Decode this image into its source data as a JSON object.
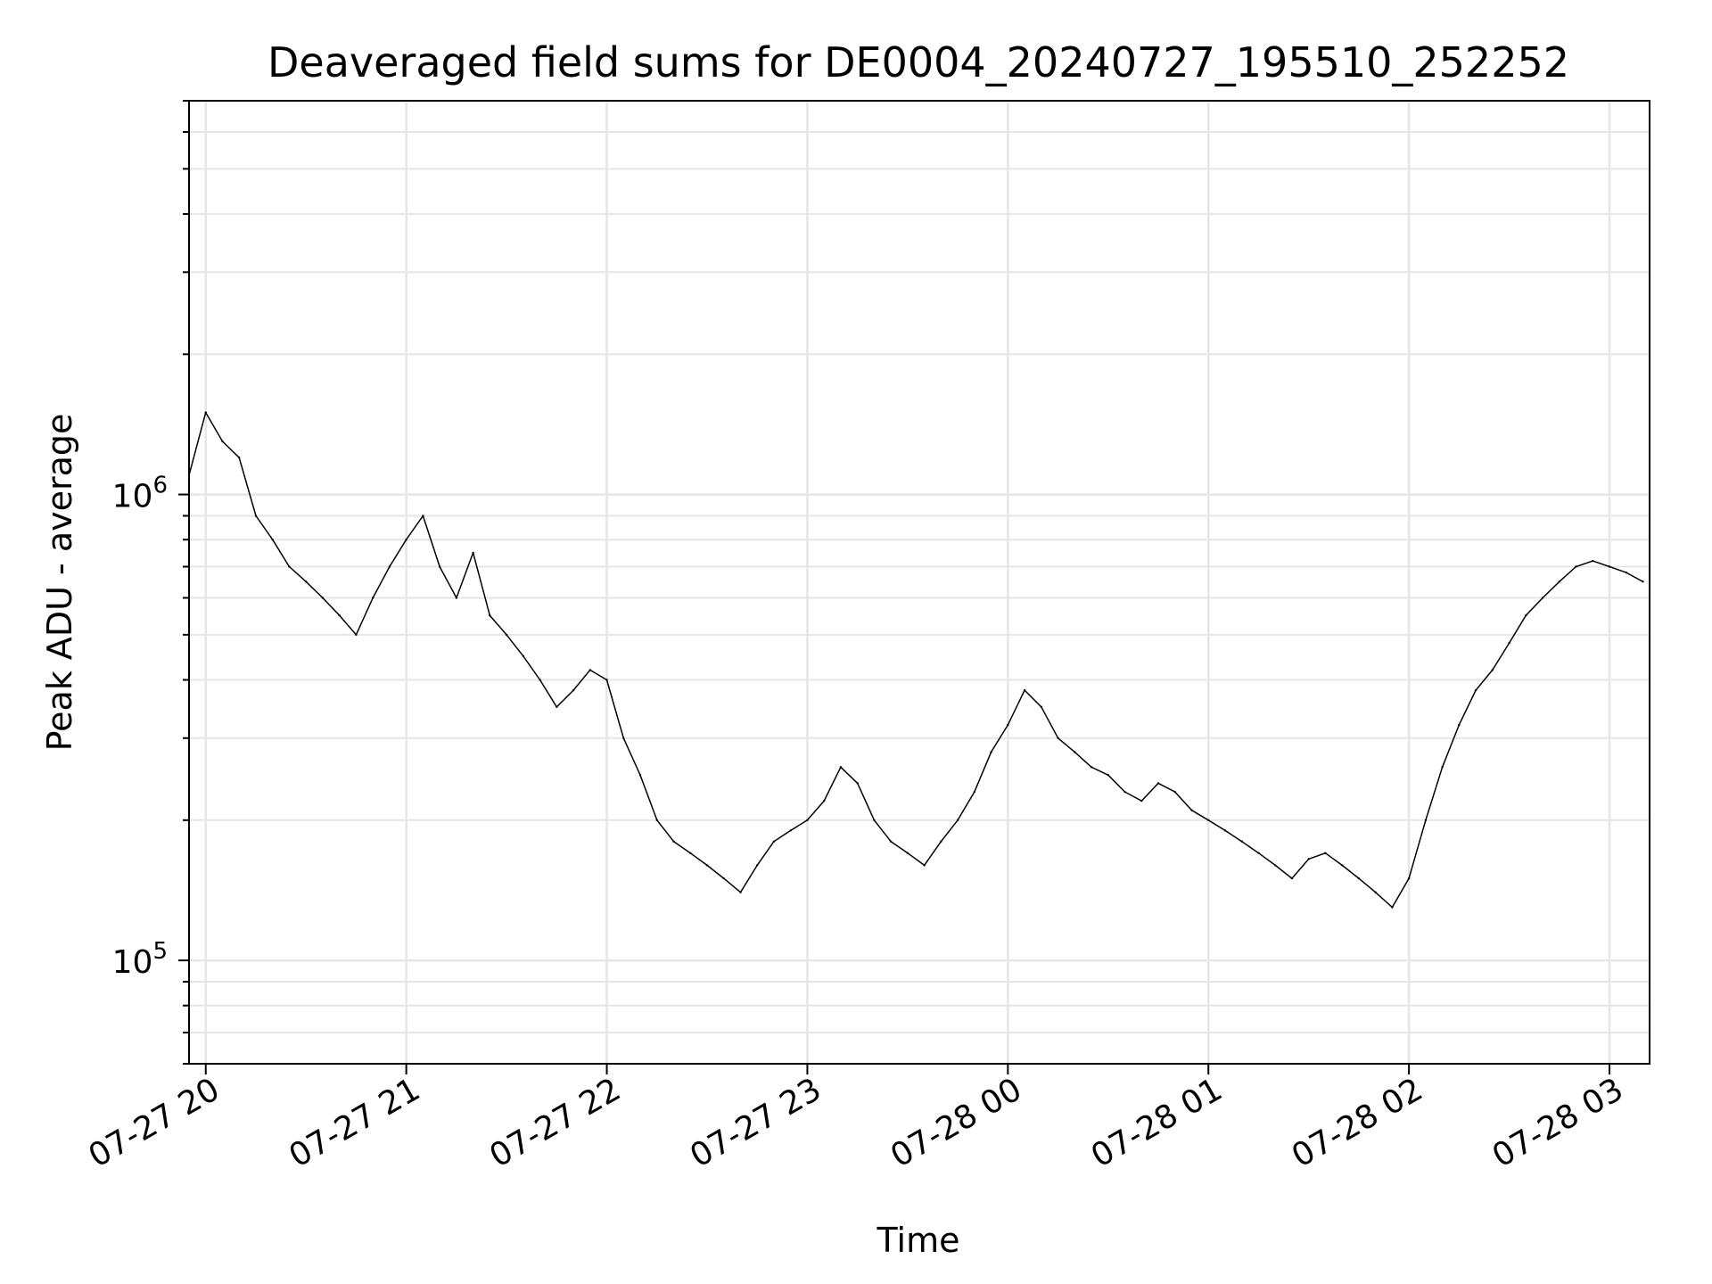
{
  "chart_data": {
    "type": "line",
    "title": "Deaveraged field sums for DE0004_20240727_195510_252252",
    "xlabel": "Time",
    "ylabel": "Peak ADU - average",
    "yscale": "log",
    "xlim": [
      "2024-07-27 19:55",
      "2024-07-28 03:12"
    ],
    "ylim": [
      60000,
      7000000
    ],
    "grid": true,
    "x_ticks": [
      "07-27 20",
      "07-27 21",
      "07-27 22",
      "07-27 23",
      "07-28 00",
      "07-28 01",
      "07-28 02",
      "07-28 03"
    ],
    "y_ticks": [
      {
        "base": "10",
        "exp": "5",
        "value": 100000
      },
      {
        "base": "10",
        "exp": "6",
        "value": 1000000
      }
    ],
    "line_color": "#000000",
    "series": [
      {
        "x": [
          "2024-07-27 19:55",
          "2024-07-27 20:00",
          "2024-07-27 20:05",
          "2024-07-27 20:10",
          "2024-07-27 20:15",
          "2024-07-27 20:20",
          "2024-07-27 20:25",
          "2024-07-27 20:30",
          "2024-07-27 20:35",
          "2024-07-27 20:40",
          "2024-07-27 20:45",
          "2024-07-27 20:50",
          "2024-07-27 20:55",
          "2024-07-27 21:00",
          "2024-07-27 21:05",
          "2024-07-27 21:10",
          "2024-07-27 21:15",
          "2024-07-27 21:20",
          "2024-07-27 21:25",
          "2024-07-27 21:30",
          "2024-07-27 21:35",
          "2024-07-27 21:40",
          "2024-07-27 21:45",
          "2024-07-27 21:50",
          "2024-07-27 21:55",
          "2024-07-27 22:00",
          "2024-07-27 22:05",
          "2024-07-27 22:10",
          "2024-07-27 22:15",
          "2024-07-27 22:20",
          "2024-07-27 22:25",
          "2024-07-27 22:30",
          "2024-07-27 22:35",
          "2024-07-27 22:40",
          "2024-07-27 22:45",
          "2024-07-27 22:50",
          "2024-07-27 22:55",
          "2024-07-27 23:00",
          "2024-07-27 23:05",
          "2024-07-27 23:10",
          "2024-07-27 23:15",
          "2024-07-27 23:20",
          "2024-07-27 23:25",
          "2024-07-27 23:30",
          "2024-07-27 23:35",
          "2024-07-27 23:40",
          "2024-07-27 23:45",
          "2024-07-27 23:50",
          "2024-07-27 23:55",
          "2024-07-28 00:00",
          "2024-07-28 00:05",
          "2024-07-28 00:10",
          "2024-07-28 00:15",
          "2024-07-28 00:20",
          "2024-07-28 00:25",
          "2024-07-28 00:30",
          "2024-07-28 00:35",
          "2024-07-28 00:40",
          "2024-07-28 00:45",
          "2024-07-28 00:50",
          "2024-07-28 00:55",
          "2024-07-28 01:00",
          "2024-07-28 01:05",
          "2024-07-28 01:10",
          "2024-07-28 01:15",
          "2024-07-28 01:20",
          "2024-07-28 01:25",
          "2024-07-28 01:30",
          "2024-07-28 01:35",
          "2024-07-28 01:40",
          "2024-07-28 01:45",
          "2024-07-28 01:50",
          "2024-07-28 01:55",
          "2024-07-28 02:00",
          "2024-07-28 02:05",
          "2024-07-28 02:10",
          "2024-07-28 02:15",
          "2024-07-28 02:20",
          "2024-07-28 02:25",
          "2024-07-28 02:30",
          "2024-07-28 02:35",
          "2024-07-28 02:40",
          "2024-07-28 02:45",
          "2024-07-28 02:50",
          "2024-07-28 02:55",
          "2024-07-28 03:00",
          "2024-07-28 03:05",
          "2024-07-28 03:10"
        ],
        "values": [
          1100000,
          1500000,
          1300000,
          1200000,
          900000,
          800000,
          700000,
          650000,
          600000,
          550000,
          500000,
          600000,
          700000,
          800000,
          900000,
          700000,
          600000,
          750000,
          550000,
          500000,
          450000,
          400000,
          350000,
          380000,
          420000,
          400000,
          300000,
          250000,
          200000,
          180000,
          170000,
          160000,
          150000,
          140000,
          160000,
          180000,
          190000,
          200000,
          220000,
          260000,
          240000,
          200000,
          180000,
          170000,
          160000,
          180000,
          200000,
          230000,
          280000,
          320000,
          380000,
          350000,
          300000,
          280000,
          260000,
          250000,
          230000,
          220000,
          240000,
          230000,
          210000,
          200000,
          190000,
          180000,
          170000,
          160000,
          150000,
          165000,
          170000,
          160000,
          150000,
          140000,
          130000,
          150000,
          200000,
          260000,
          320000,
          380000,
          420000,
          480000,
          550000,
          600000,
          650000,
          700000,
          720000,
          700000,
          680000,
          650000
        ]
      }
    ]
  }
}
